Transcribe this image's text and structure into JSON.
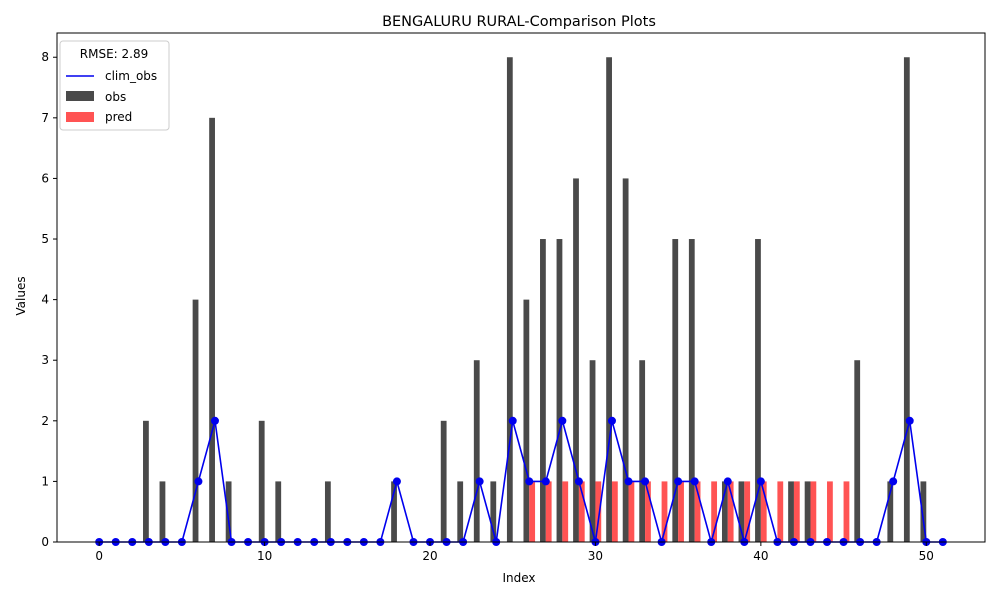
{
  "chart_data": {
    "type": "bar",
    "title": "BENGALURU RURAL-Comparison Plots",
    "xlabel": "Index",
    "ylabel": "Values",
    "xlim": [
      -2.55,
      53.55
    ],
    "ylim": [
      0,
      8.4
    ],
    "x_ticks": [
      0,
      10,
      20,
      30,
      40,
      50
    ],
    "y_ticks": [
      0,
      1,
      2,
      3,
      4,
      5,
      6,
      7,
      8
    ],
    "legend": {
      "position": "upper-left",
      "title": "RMSE: 2.89",
      "entries": [
        "clim_obs",
        "obs",
        "pred"
      ]
    },
    "x": [
      0,
      1,
      2,
      3,
      4,
      5,
      6,
      7,
      8,
      9,
      10,
      11,
      12,
      13,
      14,
      15,
      16,
      17,
      18,
      19,
      20,
      21,
      22,
      23,
      24,
      25,
      26,
      27,
      28,
      29,
      30,
      31,
      32,
      33,
      34,
      35,
      36,
      37,
      38,
      39,
      40,
      41,
      42,
      43,
      44,
      45,
      46,
      47,
      48,
      49,
      50,
      51
    ],
    "series": [
      {
        "name": "obs",
        "kind": "bar",
        "color": "#404040",
        "values": [
          0,
          0,
          0,
          2,
          1,
          0,
          4,
          7,
          1,
          0,
          2,
          1,
          0,
          0,
          1,
          0,
          0,
          0,
          1,
          0,
          0,
          2,
          1,
          3,
          1,
          8,
          4,
          5,
          5,
          6,
          3,
          8,
          6,
          3,
          0,
          5,
          5,
          0,
          1,
          1,
          5,
          0,
          1,
          1,
          0,
          0,
          3,
          0,
          1,
          8,
          1,
          0
        ]
      },
      {
        "name": "pred",
        "kind": "bar",
        "color": "#ff4a4a",
        "values": [
          0,
          0,
          0,
          0,
          0,
          0,
          0,
          0,
          0,
          0,
          0,
          0,
          0,
          0,
          0,
          0,
          0,
          0,
          0,
          0,
          0,
          0,
          0,
          0,
          0,
          0,
          1,
          1,
          1,
          1,
          1,
          1,
          1,
          1,
          1,
          1,
          1,
          1,
          1,
          1,
          1,
          1,
          1,
          1,
          1,
          1,
          0,
          0,
          0,
          0,
          0,
          0
        ]
      },
      {
        "name": "clim_obs",
        "kind": "line",
        "color": "#0000ee",
        "values": [
          0,
          0,
          0,
          0,
          0,
          0,
          1,
          2,
          0,
          0,
          0,
          0,
          0,
          0,
          0,
          0,
          0,
          0,
          1,
          0,
          0,
          0,
          0,
          1,
          0,
          2,
          1,
          1,
          2,
          1,
          0,
          2,
          1,
          1,
          0,
          1,
          1,
          0,
          1,
          0,
          1,
          0,
          0,
          0,
          0,
          0,
          0,
          0,
          1,
          2,
          0,
          0
        ]
      }
    ]
  }
}
